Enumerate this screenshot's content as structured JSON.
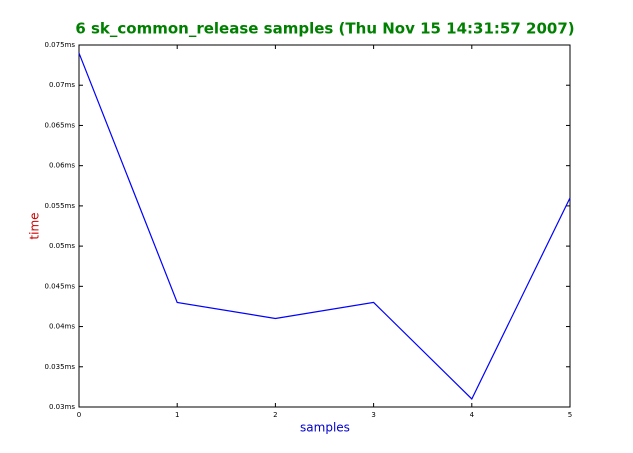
{
  "chart_data": {
    "type": "line",
    "title": "6 sk_common_release samples (Thu Nov 15 14:31:57 2007)",
    "x_label": "samples",
    "y_label": "time",
    "x": [
      0,
      1,
      2,
      3,
      4,
      5
    ],
    "values": [
      0.074,
      0.043,
      0.041,
      0.043,
      0.031,
      0.056
    ],
    "color": "#0000ff",
    "xlim": [
      0,
      5
    ],
    "xticks": [
      0,
      1,
      2,
      3,
      4,
      5
    ],
    "ylim": [
      0.03,
      0.075
    ],
    "yticks": [
      {
        "value": 0.03,
        "label": "0.03ms"
      },
      {
        "value": 0.035,
        "label": "0.035ms"
      },
      {
        "value": 0.04,
        "label": "0.04ms"
      },
      {
        "value": 0.045,
        "label": "0.045ms"
      },
      {
        "value": 0.05,
        "label": "0.05ms"
      },
      {
        "value": 0.055,
        "label": "0.055ms"
      },
      {
        "value": 0.06,
        "label": "0.06ms"
      },
      {
        "value": 0.065,
        "label": "0.065ms"
      },
      {
        "value": 0.07,
        "label": "0.07ms"
      },
      {
        "value": 0.075,
        "label": "0.075ms"
      }
    ],
    "grid": false
  }
}
